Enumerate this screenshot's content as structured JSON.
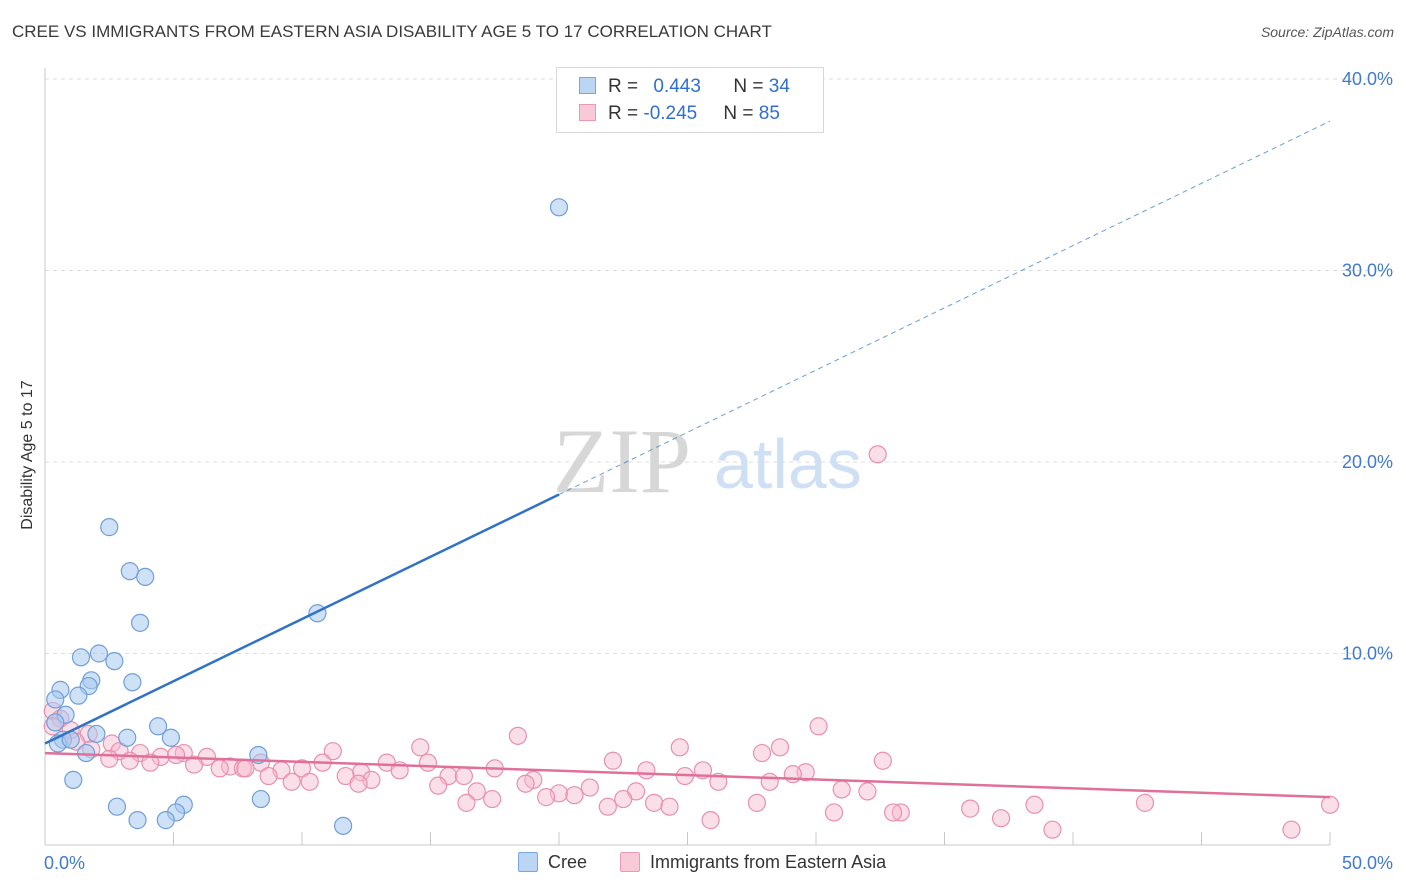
{
  "header": {
    "title": "CREE VS IMMIGRANTS FROM EASTERN ASIA DISABILITY AGE 5 TO 17 CORRELATION CHART",
    "source": "Source: ZipAtlas.com"
  },
  "legend": {
    "rows": [
      {
        "r_label": "R = ",
        "r_value": "0.443",
        "n_label": "N = ",
        "n_value": "34"
      },
      {
        "r_label": "R = ",
        "r_value": "-0.245",
        "n_label": "N = ",
        "n_value": "85"
      }
    ]
  },
  "bottom_legend": {
    "cree": "Cree",
    "immigrants": "Immigrants from Eastern Asia"
  },
  "watermark": {
    "zip": "ZIP",
    "atlas": "atlas"
  },
  "colors": {
    "blue_fill": "#a8c8f0",
    "blue_stroke": "#6f9fd8",
    "blue_line": "#2f72c8",
    "pink_fill": "#f6b8cc",
    "pink_stroke": "#e890ae",
    "pink_line": "#e0709a",
    "tick_text": "#3f7ad0",
    "grid": "#dcdcdc"
  },
  "chart_data": {
    "type": "scatter",
    "title": "CREE VS IMMIGRANTS FROM EASTERN ASIA DISABILITY AGE 5 TO 17 CORRELATION CHART",
    "xlabel": "",
    "ylabel": "Disability Age 5 to 17",
    "xlim": [
      0,
      50
    ],
    "ylim": [
      0,
      40
    ],
    "x_tick_labels": [
      "0.0%",
      "50.0%"
    ],
    "y_ticks": [
      10,
      20,
      30,
      40
    ],
    "y_tick_labels": [
      "10.0%",
      "20.0%",
      "30.0%",
      "40.0%"
    ],
    "x_minor_ticks": [
      5,
      10,
      15,
      20,
      25,
      30,
      35,
      40,
      45
    ],
    "series": [
      {
        "name": "Cree",
        "r": 0.443,
        "n": 34,
        "trend": {
          "x0": 0,
          "y0": 5.3,
          "x1": 20,
          "y1": 18.3,
          "dashed_to_x": 50,
          "dashed_to_y": 37.8
        },
        "points": [
          [
            20.0,
            33.3
          ],
          [
            2.5,
            16.6
          ],
          [
            3.3,
            14.3
          ],
          [
            3.9,
            14.0
          ],
          [
            3.7,
            11.6
          ],
          [
            10.6,
            12.1
          ],
          [
            1.4,
            9.8
          ],
          [
            2.1,
            10.0
          ],
          [
            2.7,
            9.6
          ],
          [
            1.8,
            8.6
          ],
          [
            3.4,
            8.5
          ],
          [
            1.7,
            8.3
          ],
          [
            0.6,
            8.1
          ],
          [
            1.3,
            7.8
          ],
          [
            0.4,
            7.6
          ],
          [
            0.8,
            6.8
          ],
          [
            0.4,
            6.4
          ],
          [
            4.4,
            6.2
          ],
          [
            0.7,
            5.5
          ],
          [
            2.0,
            5.8
          ],
          [
            3.2,
            5.6
          ],
          [
            4.9,
            5.6
          ],
          [
            0.5,
            5.3
          ],
          [
            1.6,
            4.8
          ],
          [
            8.3,
            4.7
          ],
          [
            1.1,
            3.4
          ],
          [
            2.8,
            2.0
          ],
          [
            5.4,
            2.1
          ],
          [
            8.4,
            2.4
          ],
          [
            3.6,
            1.3
          ],
          [
            5.1,
            1.7
          ],
          [
            4.7,
            1.3
          ],
          [
            11.6,
            1.0
          ],
          [
            1.0,
            5.5
          ]
        ]
      },
      {
        "name": "Immigrants from Eastern Asia",
        "r": -0.245,
        "n": 85,
        "trend": {
          "x0": 0,
          "y0": 4.8,
          "x1": 50,
          "y1": 2.5
        },
        "points": [
          [
            32.4,
            20.4
          ],
          [
            0.3,
            7.0
          ],
          [
            0.6,
            6.6
          ],
          [
            0.3,
            6.2
          ],
          [
            1.0,
            6.0
          ],
          [
            1.7,
            5.8
          ],
          [
            30.1,
            6.2
          ],
          [
            18.4,
            5.7
          ],
          [
            1.2,
            5.4
          ],
          [
            2.6,
            5.3
          ],
          [
            1.8,
            5.0
          ],
          [
            2.9,
            4.9
          ],
          [
            3.7,
            4.8
          ],
          [
            5.4,
            4.8
          ],
          [
            14.6,
            5.1
          ],
          [
            24.7,
            5.1
          ],
          [
            28.6,
            5.1
          ],
          [
            11.2,
            4.9
          ],
          [
            27.9,
            4.8
          ],
          [
            4.5,
            4.6
          ],
          [
            5.1,
            4.7
          ],
          [
            6.3,
            4.6
          ],
          [
            2.5,
            4.5
          ],
          [
            3.3,
            4.4
          ],
          [
            4.1,
            4.3
          ],
          [
            5.8,
            4.2
          ],
          [
            7.2,
            4.1
          ],
          [
            8.4,
            4.3
          ],
          [
            10.8,
            4.3
          ],
          [
            13.3,
            4.3
          ],
          [
            14.9,
            4.3
          ],
          [
            22.1,
            4.4
          ],
          [
            32.6,
            4.4
          ],
          [
            6.8,
            4.0
          ],
          [
            7.7,
            4.0
          ],
          [
            9.2,
            3.9
          ],
          [
            10.0,
            4.0
          ],
          [
            12.3,
            3.8
          ],
          [
            13.8,
            3.9
          ],
          [
            15.7,
            3.6
          ],
          [
            17.5,
            4.0
          ],
          [
            23.4,
            3.9
          ],
          [
            25.6,
            3.9
          ],
          [
            29.6,
            3.8
          ],
          [
            29.1,
            3.7
          ],
          [
            24.9,
            3.6
          ],
          [
            8.7,
            3.6
          ],
          [
            11.7,
            3.6
          ],
          [
            12.7,
            3.4
          ],
          [
            16.3,
            3.6
          ],
          [
            19.0,
            3.4
          ],
          [
            12.2,
            3.2
          ],
          [
            9.6,
            3.3
          ],
          [
            26.2,
            3.3
          ],
          [
            28.2,
            3.3
          ],
          [
            15.3,
            3.1
          ],
          [
            21.2,
            3.0
          ],
          [
            18.7,
            3.2
          ],
          [
            16.8,
            2.8
          ],
          [
            20.0,
            2.7
          ],
          [
            20.6,
            2.6
          ],
          [
            23.0,
            2.8
          ],
          [
            31.0,
            2.9
          ],
          [
            32.0,
            2.8
          ],
          [
            19.5,
            2.5
          ],
          [
            17.4,
            2.4
          ],
          [
            22.5,
            2.4
          ],
          [
            27.7,
            2.2
          ],
          [
            23.7,
            2.2
          ],
          [
            21.9,
            2.0
          ],
          [
            24.3,
            2.0
          ],
          [
            38.5,
            2.1
          ],
          [
            42.8,
            2.2
          ],
          [
            50.0,
            2.1
          ],
          [
            33.3,
            1.7
          ],
          [
            25.9,
            1.3
          ],
          [
            30.7,
            1.7
          ],
          [
            36.0,
            1.9
          ],
          [
            37.2,
            1.4
          ],
          [
            39.2,
            0.8
          ],
          [
            48.5,
            0.8
          ],
          [
            33.0,
            1.7
          ],
          [
            16.4,
            2.2
          ],
          [
            10.3,
            3.3
          ],
          [
            7.8,
            4.0
          ]
        ]
      }
    ]
  }
}
